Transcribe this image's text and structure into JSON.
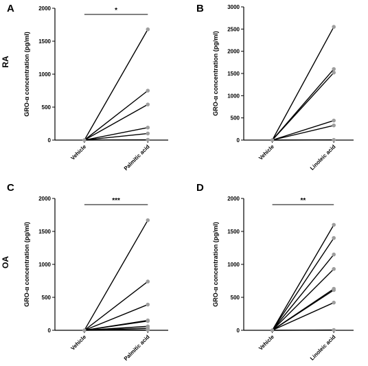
{
  "figure": {
    "row_labels": [
      "RA",
      "OA"
    ]
  },
  "chart_data": [
    {
      "panel": "A",
      "type": "line",
      "categories": [
        "Vehicle",
        "Palmitic acid"
      ],
      "ylabel": "GRO-α concentration (pg/ml)",
      "ylim": [
        0,
        2000
      ],
      "yticks": [
        "0",
        "500",
        "1000",
        "1500",
        "2000"
      ],
      "significance": "*",
      "series": [
        {
          "values": [
            0,
            1680
          ]
        },
        {
          "values": [
            0,
            750
          ]
        },
        {
          "values": [
            0,
            540
          ]
        },
        {
          "values": [
            0,
            190
          ]
        },
        {
          "values": [
            0,
            100
          ]
        },
        {
          "values": [
            0,
            5
          ]
        }
      ]
    },
    {
      "panel": "B",
      "type": "line",
      "categories": [
        "Vehicle",
        "Linoleic acid"
      ],
      "ylabel": "GRO-α concentration (pg/ml)",
      "ylim": [
        0,
        3000
      ],
      "yticks": [
        "0",
        "500",
        "1000",
        "1500",
        "2000",
        "2500",
        "3000"
      ],
      "significance": "",
      "series": [
        {
          "values": [
            0,
            2550
          ]
        },
        {
          "values": [
            0,
            1600
          ]
        },
        {
          "values": [
            0,
            1520
          ]
        },
        {
          "values": [
            0,
            440
          ]
        },
        {
          "values": [
            0,
            330
          ]
        },
        {
          "values": [
            0,
            5
          ]
        }
      ]
    },
    {
      "panel": "C",
      "type": "line",
      "categories": [
        "Vehicle",
        "Palmitic acid"
      ],
      "ylabel": "GRO-α concentration (pg/ml)",
      "ylim": [
        0,
        2000
      ],
      "yticks": [
        "0",
        "500",
        "1000",
        "1500",
        "2000"
      ],
      "significance": "***",
      "series": [
        {
          "values": [
            0,
            1670
          ]
        },
        {
          "values": [
            0,
            740
          ]
        },
        {
          "values": [
            0,
            390
          ]
        },
        {
          "values": [
            0,
            150
          ]
        },
        {
          "values": [
            0,
            140
          ]
        },
        {
          "values": [
            0,
            60
          ]
        },
        {
          "values": [
            0,
            30
          ]
        },
        {
          "values": [
            0,
            5
          ]
        }
      ]
    },
    {
      "panel": "D",
      "type": "line",
      "categories": [
        "Vehicle",
        "Linoleic acid"
      ],
      "ylabel": "GRO-α concentration (pg/ml)",
      "ylim": [
        0,
        2000
      ],
      "yticks": [
        "0",
        "500",
        "1000",
        "1500",
        "2000"
      ],
      "significance": "**",
      "series": [
        {
          "values": [
            0,
            1600
          ]
        },
        {
          "values": [
            0,
            1400
          ]
        },
        {
          "values": [
            0,
            1150
          ]
        },
        {
          "values": [
            0,
            930
          ]
        },
        {
          "values": [
            0,
            630
          ]
        },
        {
          "values": [
            0,
            610
          ]
        },
        {
          "values": [
            0,
            420
          ]
        },
        {
          "values": [
            0,
            5
          ]
        }
      ]
    }
  ]
}
